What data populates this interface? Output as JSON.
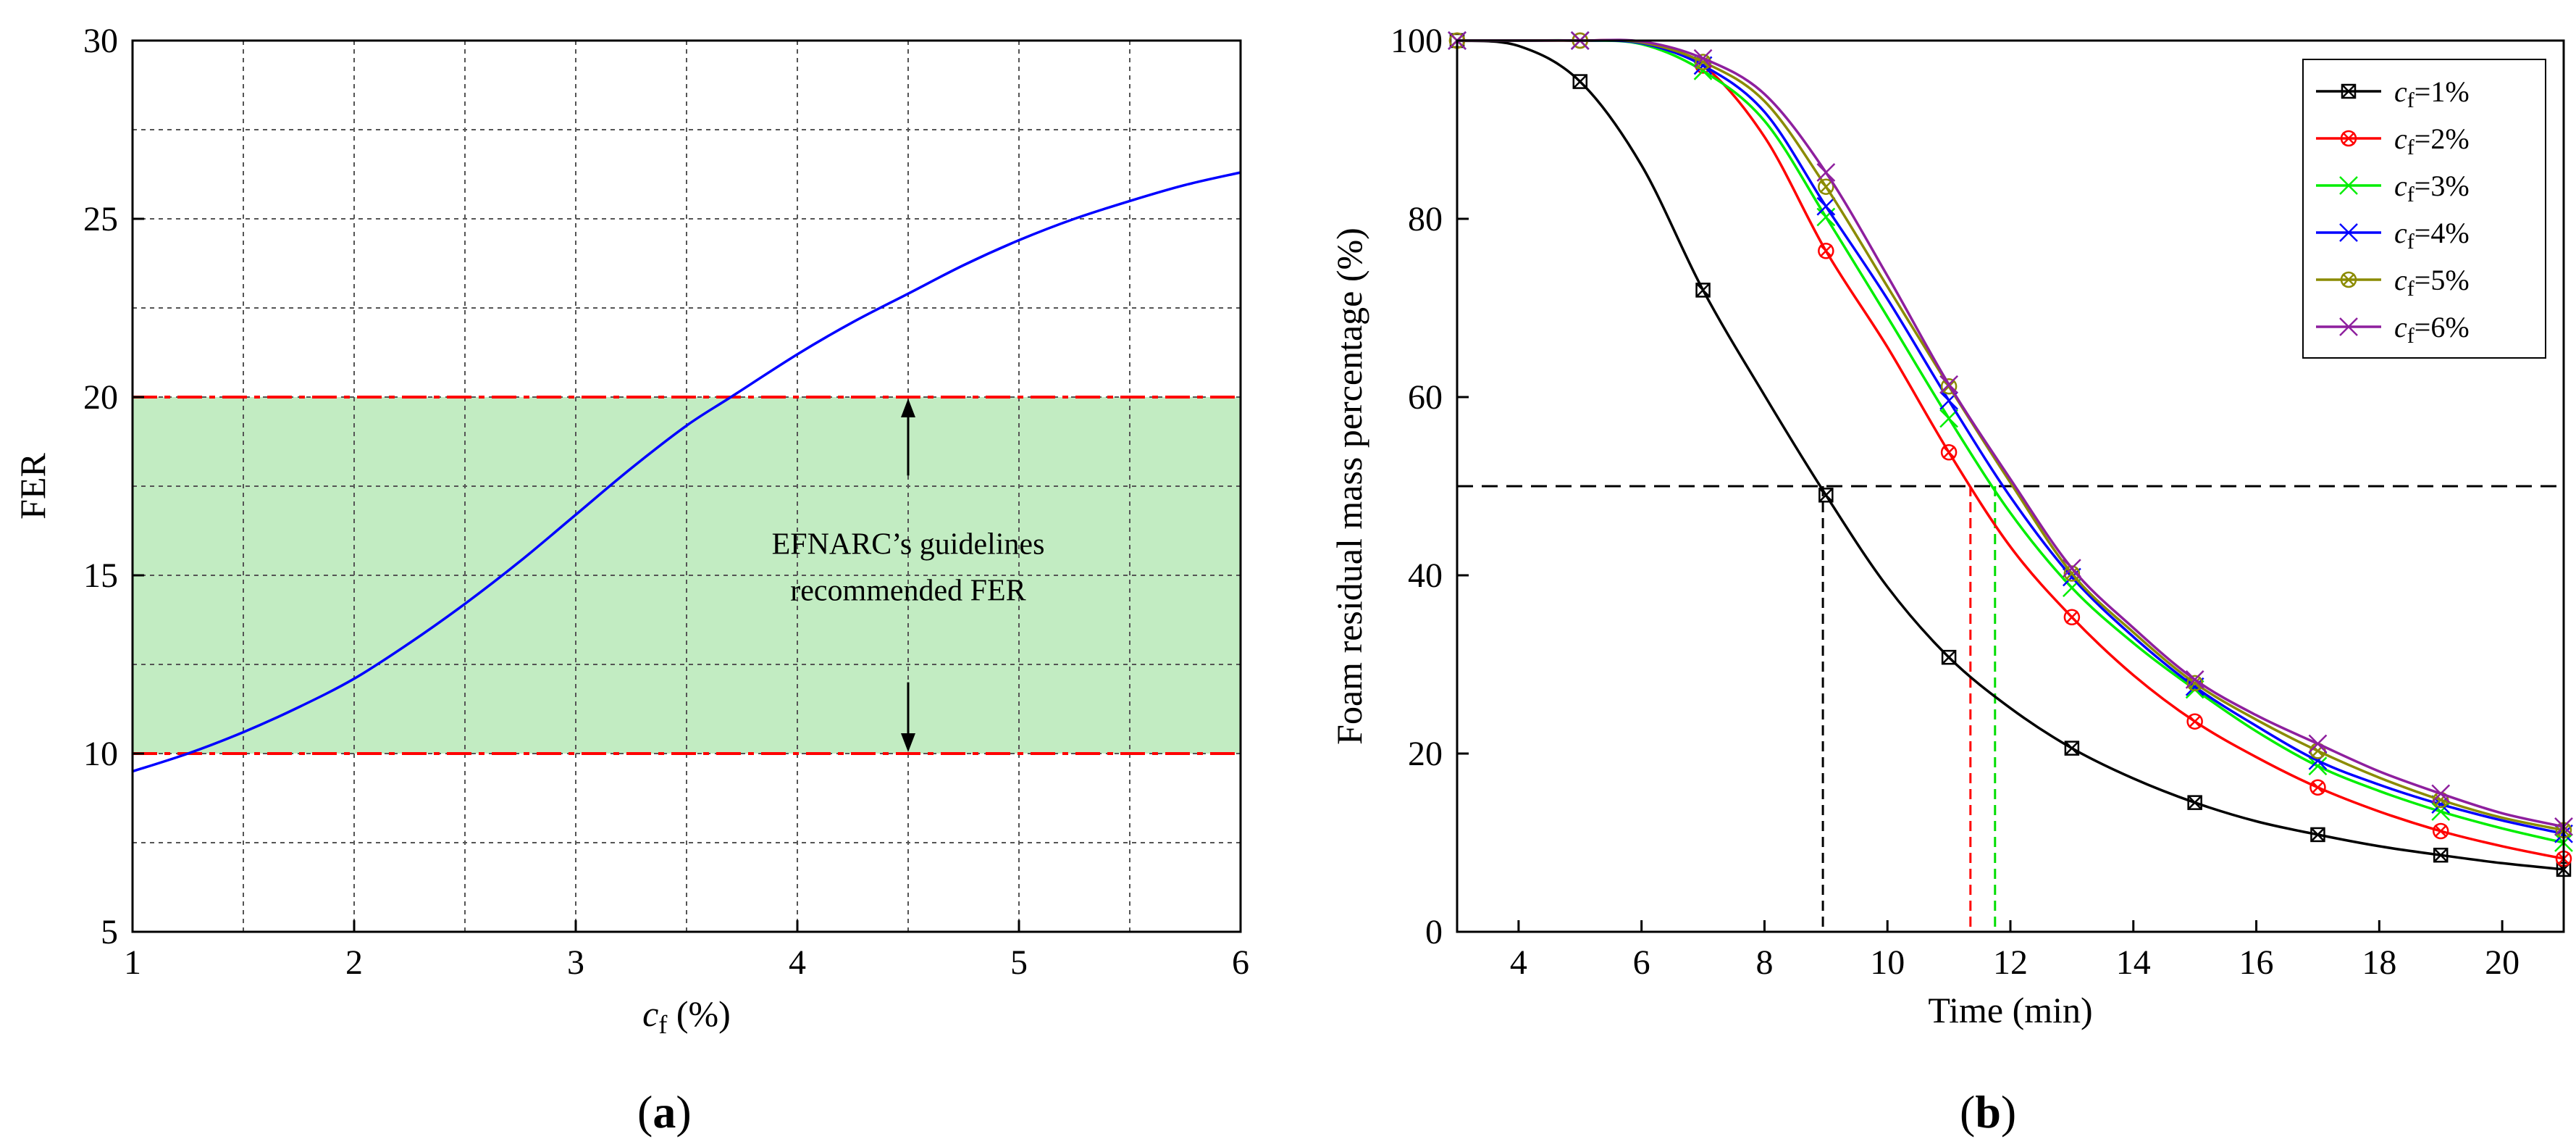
{
  "chart_data": [
    {
      "type": "line",
      "panel_label": "a",
      "xlabel_var": "c",
      "xlabel_sub": "f",
      "xlabel_unit": " (%)",
      "ylabel": "FER",
      "xlim": [
        1,
        6
      ],
      "ylim": [
        5,
        30
      ],
      "xticks": [
        1,
        2,
        3,
        4,
        5,
        6
      ],
      "yticks": [
        5,
        10,
        15,
        20,
        25,
        30
      ],
      "grid": true,
      "band": {
        "from": 10,
        "to": 20,
        "color": "#c2ecc2",
        "line_color": "#ff0000"
      },
      "annotation": [
        "EFNARC’s guidelines",
        "recommended FER"
      ],
      "series": [
        {
          "color": "#0000ff",
          "x": [
            1.0,
            1.25,
            1.5,
            1.75,
            2.0,
            2.25,
            2.5,
            2.75,
            3.0,
            3.25,
            3.5,
            3.7,
            4.0,
            4.25,
            4.5,
            4.75,
            5.0,
            5.25,
            5.5,
            5.75,
            6.0
          ],
          "y": [
            9.5,
            10.0,
            10.6,
            11.3,
            12.1,
            13.1,
            14.2,
            15.4,
            16.7,
            18.0,
            19.2,
            20.0,
            21.2,
            22.1,
            22.9,
            23.7,
            24.4,
            25.0,
            25.5,
            25.95,
            26.3
          ]
        }
      ]
    },
    {
      "type": "line",
      "panel_label": "b",
      "xlabel": "Time (min)",
      "ylabel": "Foam residual mass percentage (%)",
      "xlim": [
        3,
        21
      ],
      "ylim": [
        0,
        100
      ],
      "xticks": [
        4,
        6,
        8,
        10,
        12,
        14,
        16,
        18,
        20
      ],
      "yticks": [
        0,
        20,
        40,
        60,
        80,
        100
      ],
      "grid": false,
      "legend_position": "top-right",
      "reference_line": {
        "y": 50,
        "color": "#000000"
      },
      "half_life_markers": [
        {
          "x": 8.95,
          "color": "#000000"
        },
        {
          "x": 11.35,
          "color": "#ff0000"
        },
        {
          "x": 11.75,
          "color": "#00dd00"
        }
      ],
      "markers_x": [
        3,
        5,
        7,
        9,
        11,
        13,
        15,
        17,
        19,
        21
      ],
      "series": [
        {
          "name_var": "c",
          "name_sub": "f",
          "name_suffix": "=1%",
          "color": "#000000",
          "marker": "box-x",
          "x": [
            3,
            4,
            5,
            6,
            7,
            8,
            9,
            10,
            11,
            12,
            13,
            14,
            15,
            16,
            17,
            18,
            19,
            20,
            21
          ],
          "y": [
            100,
            99.4,
            95.4,
            86,
            72,
            60.2,
            49,
            38.7,
            30.8,
            25.1,
            20.6,
            17.2,
            14.5,
            12.4,
            10.9,
            9.6,
            8.6,
            7.7,
            7.0
          ]
        },
        {
          "name_var": "c",
          "name_sub": "f",
          "name_suffix": "=2%",
          "color": "#ff0000",
          "marker": "circle-x",
          "x": [
            3,
            4,
            5,
            6,
            7,
            8,
            9,
            10,
            11,
            12,
            13,
            14,
            15,
            16,
            17,
            18,
            19,
            20,
            21
          ],
          "y": [
            100,
            100,
            100,
            99.8,
            97.2,
            89.2,
            76.4,
            65.6,
            53.8,
            43.2,
            35.3,
            28.8,
            23.6,
            19.6,
            16.2,
            13.5,
            11.3,
            9.6,
            8.2
          ]
        },
        {
          "name_var": "c",
          "name_sub": "f",
          "name_suffix": "=3%",
          "color": "#00ee00",
          "marker": "x",
          "x": [
            3,
            4,
            5,
            6,
            7,
            8,
            9,
            10,
            11,
            12,
            13,
            14,
            15,
            16,
            17,
            18,
            19,
            20,
            21
          ],
          "y": [
            100,
            100,
            100,
            99.6,
            96.6,
            91,
            80.2,
            69,
            57.6,
            47,
            38.6,
            32.4,
            27.2,
            22.5,
            18.6,
            15.8,
            13.5,
            11.6,
            10.0
          ]
        },
        {
          "name_var": "c",
          "name_sub": "f",
          "name_suffix": "=4%",
          "color": "#0000ff",
          "marker": "x",
          "x": [
            3,
            4,
            5,
            6,
            7,
            8,
            9,
            10,
            11,
            12,
            13,
            14,
            15,
            16,
            17,
            18,
            19,
            20,
            21
          ],
          "y": [
            100,
            100,
            100,
            99.7,
            97.2,
            92,
            81.4,
            71,
            59.6,
            48.8,
            39.8,
            33.1,
            27.5,
            23.1,
            19.2,
            16.5,
            14.3,
            12.5,
            11.0
          ]
        },
        {
          "name_var": "c",
          "name_sub": "f",
          "name_suffix": "=5%",
          "color": "#8b8b00",
          "marker": "circle-x",
          "x": [
            3,
            4,
            5,
            6,
            7,
            8,
            9,
            10,
            11,
            12,
            13,
            14,
            15,
            16,
            17,
            18,
            19,
            20,
            21
          ],
          "y": [
            100,
            100,
            100,
            99.8,
            97.6,
            93.2,
            83.6,
            72.4,
            61.2,
            50.4,
            40.2,
            33.6,
            27.9,
            23.8,
            20.3,
            17.3,
            14.8,
            12.8,
            11.4
          ]
        },
        {
          "name_var": "c",
          "name_sub": "f",
          "name_suffix": "=6%",
          "color": "#8e1f9e",
          "marker": "x",
          "x": [
            3,
            4,
            5,
            6,
            7,
            8,
            9,
            10,
            11,
            12,
            13,
            14,
            15,
            16,
            17,
            18,
            19,
            20,
            21
          ],
          "y": [
            100,
            100,
            100,
            99.9,
            98,
            94,
            85.2,
            73.6,
            61.4,
            50.8,
            40.8,
            34.1,
            28.3,
            24.3,
            21.1,
            18.0,
            15.5,
            13.3,
            11.8
          ]
        }
      ]
    }
  ]
}
